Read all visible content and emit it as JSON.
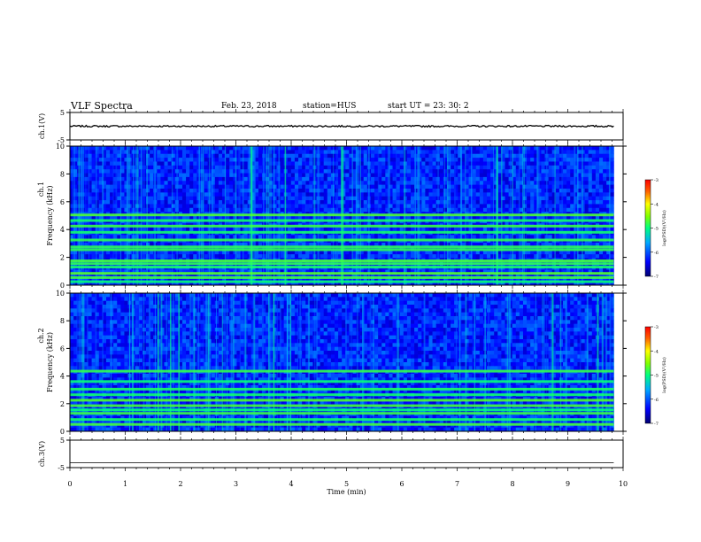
{
  "header": {
    "title": "VLF Spectra",
    "date": "Feb. 23, 2018",
    "station": "station=HUS",
    "start": "start  UT =   23: 30: 2"
  },
  "colors": {
    "background": "#ffffff",
    "spectrogram_low": "#000080",
    "spectrogram_mid": "#00ff80",
    "spectrogram_high": "#ff0000",
    "trace": "#000000"
  },
  "chart_data": [
    {
      "type": "line",
      "name": "ch1-waveform",
      "ylabel": "ch.1(V)",
      "ylim": [
        -5,
        5
      ],
      "yticks": [
        "5",
        "-5"
      ],
      "xlim": [
        0,
        10
      ],
      "trace_level": 0,
      "trace_noise": 0.3,
      "trace_end": 9.83
    },
    {
      "type": "heatmap",
      "name": "ch1-spectrogram",
      "ylabel_top": "ch.1",
      "ylabel": "Frequency (kHz)",
      "ylim": [
        0,
        10
      ],
      "yticks": [
        "0",
        "2",
        "4",
        "6",
        "8",
        "10"
      ],
      "xlim": [
        0,
        10
      ],
      "data_end": 9.83,
      "bands_khz": [
        0.25,
        0.55,
        0.85,
        1.3,
        1.55,
        1.75,
        2.55,
        2.75,
        3.25,
        3.8,
        4.25,
        4.65,
        5.05
      ],
      "colorbar": {
        "label": "log(PSD)(V²/Hz)",
        "range": [
          -7,
          -3
        ],
        "ticks": [
          "-3",
          "-4",
          "-5",
          "-6",
          "-7"
        ]
      }
    },
    {
      "type": "heatmap",
      "name": "ch2-spectrogram",
      "ylabel_top": "ch.2",
      "ylabel": "Frequency (kHz)",
      "ylim": [
        0,
        10
      ],
      "yticks": [
        "0",
        "2",
        "4",
        "6",
        "8",
        "10"
      ],
      "xlim": [
        0,
        10
      ],
      "data_end": 9.83,
      "bands_khz": [
        0.5,
        0.85,
        1.3,
        1.55,
        1.85,
        2.25,
        2.65,
        3.05,
        3.6,
        4.35
      ],
      "colorbar": {
        "label": "log(PSD)(V²/Hz)",
        "range": [
          -7,
          -3
        ],
        "ticks": [
          "-3",
          "-4",
          "-5",
          "-6",
          "-7"
        ]
      }
    },
    {
      "type": "line",
      "name": "ch3-waveform",
      "ylabel": "ch.3(V)",
      "ylim": [
        -5,
        5
      ],
      "yticks": [
        "5",
        "-5"
      ],
      "xlim": [
        0,
        10
      ],
      "trace_level": -3.2,
      "trace_noise": 0,
      "trace_end": 9.83,
      "xlabel": "Time  (min)",
      "xticks": [
        "0",
        "1",
        "2",
        "3",
        "4",
        "5",
        "6",
        "7",
        "8",
        "9",
        "10"
      ]
    }
  ]
}
